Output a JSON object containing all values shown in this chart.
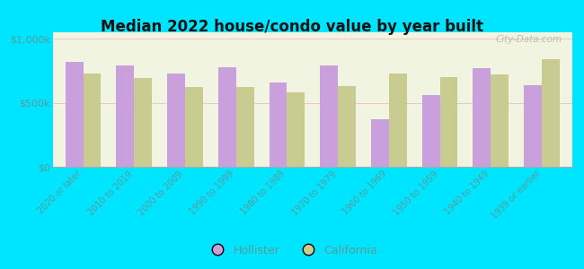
{
  "title": "Median 2022 house/condo value by year built",
  "categories": [
    "2020 or later",
    "2010 to 2019",
    "2000 to 2009",
    "1990 to 1999",
    "1980 to 1989",
    "1970 to 1979",
    "1960 to 1969",
    "1950 to 1959",
    "1940 to 1949",
    "1939 or earlier"
  ],
  "hollister": [
    820000,
    790000,
    730000,
    780000,
    660000,
    790000,
    370000,
    560000,
    770000,
    640000
  ],
  "california": [
    730000,
    690000,
    620000,
    620000,
    580000,
    630000,
    730000,
    700000,
    720000,
    840000
  ],
  "hollister_color": "#c9a0dc",
  "california_color": "#c8cc90",
  "background_outer": "#00e5ff",
  "background_inner": "#f0f4e0",
  "yticks": [
    0,
    500000,
    1000000
  ],
  "ytick_labels": [
    "$0",
    "$500k",
    "$1,000k"
  ],
  "ylim": [
    0,
    1050000
  ],
  "bar_width": 0.35,
  "watermark": "City-Data.com",
  "tick_color": "#5a9a9a",
  "label_color": "#5a9a9a"
}
